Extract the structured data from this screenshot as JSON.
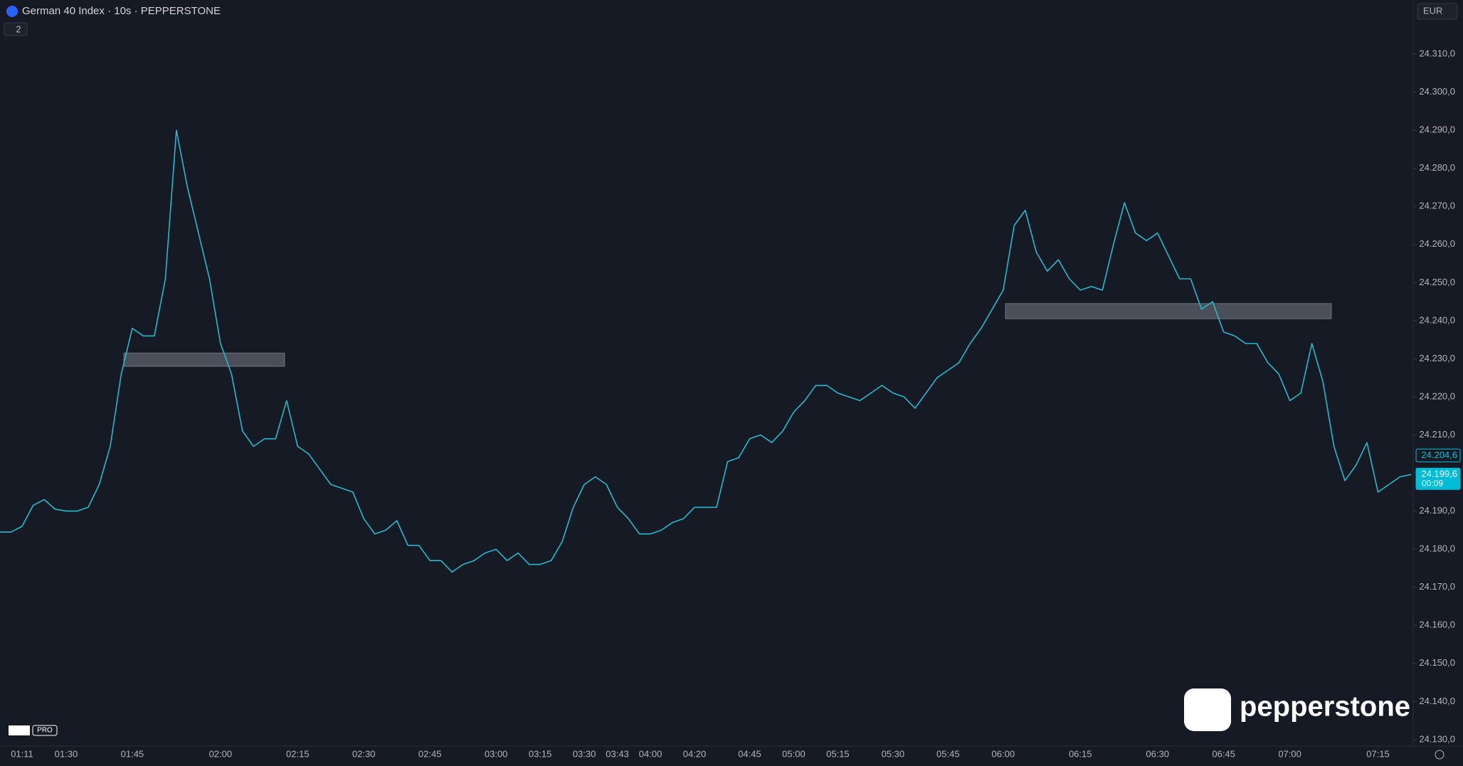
{
  "chart_data": {
    "type": "line",
    "title": "German 40 Index · 10s · PEPPERSTONE",
    "indicator_count": "2",
    "currency": "EUR",
    "brand": "pepperstone",
    "badge": "PRO",
    "color": "#26b8cc",
    "categories": [
      null,
      null,
      "01:11",
      null,
      null,
      null,
      "01:30",
      null,
      null,
      null,
      null,
      null,
      "01:45",
      null,
      null,
      null,
      null,
      null,
      null,
      null,
      "02:00",
      null,
      null,
      null,
      null,
      null,
      null,
      "02:15",
      null,
      null,
      null,
      null,
      null,
      "02:30",
      null,
      null,
      null,
      null,
      null,
      "02:45",
      null,
      null,
      null,
      null,
      null,
      "03:00",
      null,
      null,
      null,
      "03:15",
      null,
      null,
      null,
      "03:30",
      null,
      null,
      "03:43",
      null,
      null,
      "04:00",
      null,
      null,
      null,
      "04:20",
      null,
      null,
      null,
      null,
      "04:45",
      null,
      null,
      null,
      "05:00",
      null,
      null,
      null,
      "05:15",
      null,
      null,
      null,
      null,
      "05:30",
      null,
      null,
      null,
      null,
      "05:45",
      null,
      null,
      null,
      null,
      "06:00",
      null,
      null,
      null,
      null,
      null,
      null,
      "06:15",
      null,
      null,
      null,
      null,
      null,
      null,
      "06:30",
      null,
      null,
      null,
      null,
      null,
      "06:45",
      null,
      null,
      null,
      null,
      null,
      "07:00",
      null,
      null,
      null,
      null,
      null,
      null,
      null,
      "07:15",
      null,
      null,
      null
    ],
    "values": [
      24184.5,
      24184.5,
      24186,
      24191.5,
      24193,
      24190.5,
      24190,
      24190,
      24191,
      24197,
      24207,
      24226,
      24238,
      24236,
      24236,
      24251,
      24290,
      24275,
      24263,
      24251,
      24234,
      24226,
      24211,
      24207,
      24209,
      24209,
      24219,
      24207,
      24205,
      24201,
      24197,
      24196,
      24195,
      24188,
      24184,
      24185,
      24187.5,
      24181,
      24181,
      24177,
      24177,
      24174,
      24176,
      24177,
      24179,
      24180,
      24177,
      24179,
      24176,
      24176,
      24177,
      24182,
      24191,
      24197,
      24199,
      24197,
      24191,
      24188,
      24184,
      24184,
      24185,
      24187,
      24188,
      24191,
      24191,
      24191,
      24203,
      24204,
      24209,
      24210,
      24208,
      24211,
      24216,
      24219,
      24223,
      24223,
      24221,
      24220,
      24219,
      24221,
      24223,
      24221,
      24220,
      24217,
      24221,
      24225,
      24227,
      24229,
      24234,
      24238,
      24243,
      24248,
      24265,
      24269,
      24258,
      24253,
      24256,
      24251,
      24248,
      24249,
      24248,
      24260,
      24271,
      24263,
      24261,
      24263,
      24257,
      24251,
      24251,
      24243,
      24245,
      24237,
      24236,
      24234,
      24234,
      24229,
      24226,
      24219,
      24221,
      24234,
      24224,
      24207,
      24198,
      24202,
      24208,
      24195,
      24197,
      24199,
      24199.6
    ],
    "ylim": [
      24128.3,
      24324.2
    ],
    "yticks": [
      {
        "value": 24130,
        "label": "24.130,0"
      },
      {
        "value": 24140,
        "label": "24.140,0"
      },
      {
        "value": 24150,
        "label": "24.150,0"
      },
      {
        "value": 24160,
        "label": "24.160,0"
      },
      {
        "value": 24170,
        "label": "24.170,0"
      },
      {
        "value": 24180,
        "label": "24.180,0"
      },
      {
        "value": 24190,
        "label": "24.190,0"
      },
      {
        "value": 24200,
        "label": "24.200,0"
      },
      {
        "value": 24210,
        "label": "24.210,0"
      },
      {
        "value": 24220,
        "label": "24.220,0"
      },
      {
        "value": 24230,
        "label": "24.230,0"
      },
      {
        "value": 24240,
        "label": "24.240,0"
      },
      {
        "value": 24250,
        "label": "24.250,0"
      },
      {
        "value": 24260,
        "label": "24.260,0"
      },
      {
        "value": 24270,
        "label": "24.270,0"
      },
      {
        "value": 24280,
        "label": "24.280,0"
      },
      {
        "value": 24290,
        "label": "24.290,0"
      },
      {
        "value": 24300,
        "label": "24.300,0"
      },
      {
        "value": 24310,
        "label": "24.310,0"
      }
    ],
    "zones": [
      [
        24228,
        24231.5
      ],
      [
        24240.5,
        24244.5
      ]
    ],
    "price_markers": [
      {
        "value": 24204.6,
        "label": "24.204,6"
      },
      {
        "value": 24199.6,
        "label": "24.199,6",
        "countdown": "00:09"
      }
    ]
  }
}
